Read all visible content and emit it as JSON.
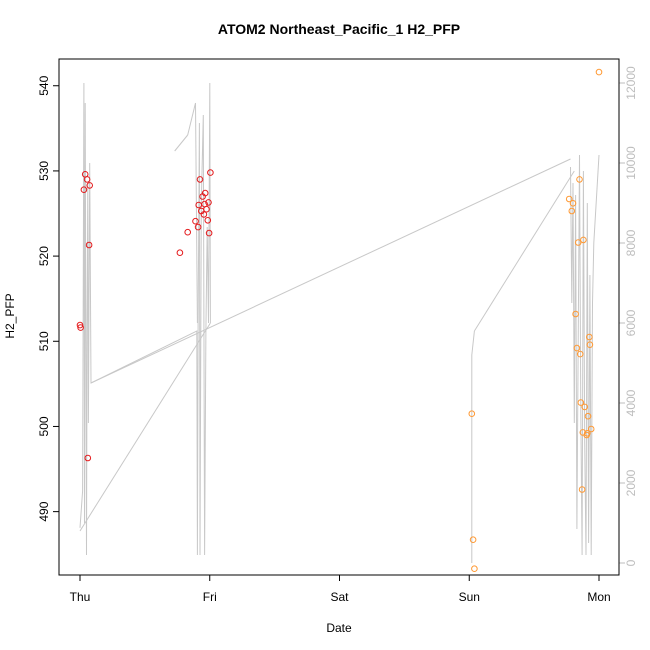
{
  "chart_data": {
    "type": "scatter",
    "title": "ATOM2 Northeast_Pacific_1 H2_PFP",
    "xlabel": "Date",
    "ylabel": "H2_PFP",
    "xlim": [
      0,
      4.0
    ],
    "ylim": [
      483.5,
      542.2
    ],
    "y2lim": [
      0,
      12300
    ],
    "x_ticks": [
      {
        "value": 0,
        "label": "Thu"
      },
      {
        "value": 1,
        "label": "Fri"
      },
      {
        "value": 2,
        "label": "Sat"
      },
      {
        "value": 3,
        "label": "Sun"
      },
      {
        "value": 4,
        "label": "Mon"
      }
    ],
    "y_ticks": [
      490,
      500,
      510,
      520,
      530,
      540
    ],
    "y2_ticks": [
      0,
      2000,
      4000,
      6000,
      8000,
      10000,
      12000
    ],
    "colors": {
      "series1": "#e41a1c",
      "series2": "#ff9933",
      "altitude": "#c8c8c8"
    },
    "series": [
      {
        "marker": "circle",
        "color": "#e41a1c",
        "points": [
          [
            0.0,
            511.9
          ],
          [
            0.005,
            511.6
          ],
          [
            0.03,
            527.8
          ],
          [
            0.04,
            529.6
          ],
          [
            0.055,
            529.0
          ],
          [
            0.06,
            496.3
          ],
          [
            0.07,
            521.3
          ],
          [
            0.075,
            528.3
          ],
          [
            0.77,
            520.4
          ],
          [
            0.83,
            522.8
          ],
          [
            0.89,
            524.1
          ],
          [
            0.91,
            523.4
          ],
          [
            0.915,
            526.0
          ],
          [
            0.925,
            529.0
          ],
          [
            0.935,
            525.3
          ],
          [
            0.945,
            527.0
          ],
          [
            0.955,
            524.9
          ],
          [
            0.96,
            526.1
          ],
          [
            0.965,
            527.4
          ],
          [
            0.975,
            525.5
          ],
          [
            0.985,
            524.2
          ],
          [
            0.99,
            526.3
          ],
          [
            0.995,
            522.7
          ],
          [
            1.005,
            529.8
          ]
        ]
      },
      {
        "marker": "circle",
        "color": "#ff9933",
        "points": [
          [
            3.02,
            501.5
          ],
          [
            3.03,
            486.7
          ],
          [
            3.04,
            483.3
          ],
          [
            3.77,
            526.7
          ],
          [
            3.79,
            525.3
          ],
          [
            3.8,
            526.2
          ],
          [
            3.82,
            513.2
          ],
          [
            3.83,
            509.2
          ],
          [
            3.84,
            521.6
          ],
          [
            3.85,
            529.0
          ],
          [
            3.855,
            508.5
          ],
          [
            3.86,
            502.8
          ],
          [
            3.87,
            492.6
          ],
          [
            3.875,
            499.3
          ],
          [
            3.88,
            521.9
          ],
          [
            3.89,
            502.3
          ],
          [
            3.905,
            499.0
          ],
          [
            3.91,
            499.2
          ],
          [
            3.915,
            501.2
          ],
          [
            3.925,
            510.5
          ],
          [
            3.93,
            509.6
          ],
          [
            3.94,
            499.7
          ],
          [
            4.0,
            541.6
          ]
        ]
      }
    ],
    "altitude_path": [
      [
        0.0,
        880
      ],
      [
        0.02,
        1800
      ],
      [
        0.03,
        12000
      ],
      [
        0.035,
        1000
      ],
      [
        0.04,
        11500
      ],
      [
        0.05,
        200
      ],
      [
        0.055,
        6000
      ],
      [
        0.06,
        9500
      ],
      [
        0.065,
        3500
      ],
      [
        0.075,
        10000
      ],
      [
        0.085,
        4500
      ],
      [
        0.9,
        5800
      ],
      [
        0.905,
        200
      ],
      [
        0.91,
        6000
      ],
      [
        0.92,
        11000
      ],
      [
        0.925,
        200
      ],
      [
        0.935,
        9000
      ],
      [
        0.95,
        11200
      ],
      [
        0.96,
        200
      ],
      [
        0.97,
        5800
      ],
      [
        0.98,
        8400
      ],
      [
        0.99,
        6000
      ],
      [
        1.0,
        12000
      ],
      [
        1.005,
        6000
      ],
      [
        3.78,
        9900
      ],
      [
        3.79,
        6500
      ],
      [
        3.8,
        9500
      ],
      [
        3.81,
        3500
      ],
      [
        3.82,
        9200
      ],
      [
        3.83,
        850
      ],
      [
        3.85,
        10200
      ],
      [
        3.86,
        3800
      ],
      [
        3.87,
        200
      ],
      [
        3.88,
        9800
      ],
      [
        3.89,
        3000
      ],
      [
        3.9,
        200
      ],
      [
        3.91,
        9000
      ],
      [
        3.92,
        500
      ],
      [
        3.93,
        7200
      ],
      [
        3.94,
        200
      ],
      [
        3.95,
        6500
      ],
      [
        3.96,
        8000
      ],
      [
        4.0,
        10200
      ]
    ],
    "altitude_segments": [
      {
        "from": [
          0.0,
          800
        ],
        "to": [
          1.005,
          6000
        ]
      },
      {
        "from": [
          0.085,
          4500
        ],
        "to": [
          3.78,
          10100
        ]
      },
      {
        "from": [
          3.02,
          5200
        ],
        "to": [
          3.04,
          5800
        ]
      },
      {
        "from": [
          3.04,
          5800
        ],
        "to": [
          3.81,
          9800
        ]
      },
      {
        "from": [
          0.73,
          10300
        ],
        "to": [
          0.83,
          10700
        ]
      },
      {
        "from": [
          0.83,
          10700
        ],
        "to": [
          0.89,
          11500
        ]
      },
      {
        "from": [
          0.89,
          11500
        ],
        "to": [
          0.905,
          6000
        ]
      },
      {
        "from": [
          3.02,
          0
        ],
        "to": [
          3.02,
          5200
        ]
      }
    ]
  }
}
